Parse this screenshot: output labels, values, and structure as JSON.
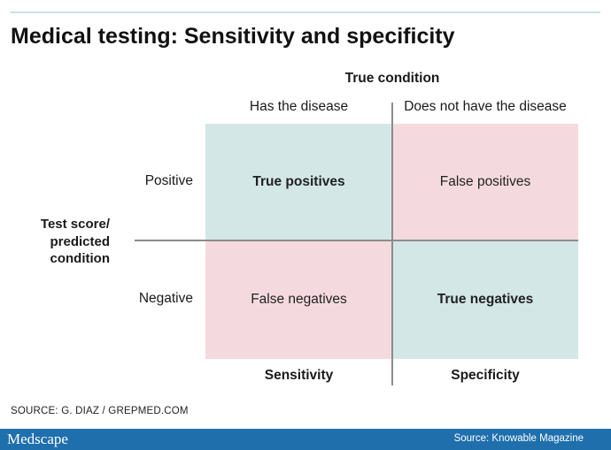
{
  "title": "Medical testing: Sensitivity and specificity",
  "header": {
    "true_condition": "True condition",
    "columns": [
      "Has the disease",
      "Does not have the disease"
    ]
  },
  "side_label": "Test score/\npredicted\ncondition",
  "rows": [
    "Positive",
    "Negative"
  ],
  "cells": {
    "true_positives": "True positives",
    "false_positives": "False positives",
    "false_negatives": "False negatives",
    "true_negatives": "True negatives"
  },
  "footer_labels": {
    "sensitivity": "Sensitivity",
    "specificity": "Specificity"
  },
  "source": "SOURCE: G. DIAZ / GREPMED.COM",
  "branding": {
    "logo_text": "Medscape",
    "credit": "Source: Knowable Magazine"
  },
  "colors": {
    "true_cell": "#d3e7e6",
    "false_cell": "#f4dade",
    "divider": "#8c8c8c",
    "top_rule": "#c9e3e1",
    "footer_bar": "#1f6fad"
  }
}
